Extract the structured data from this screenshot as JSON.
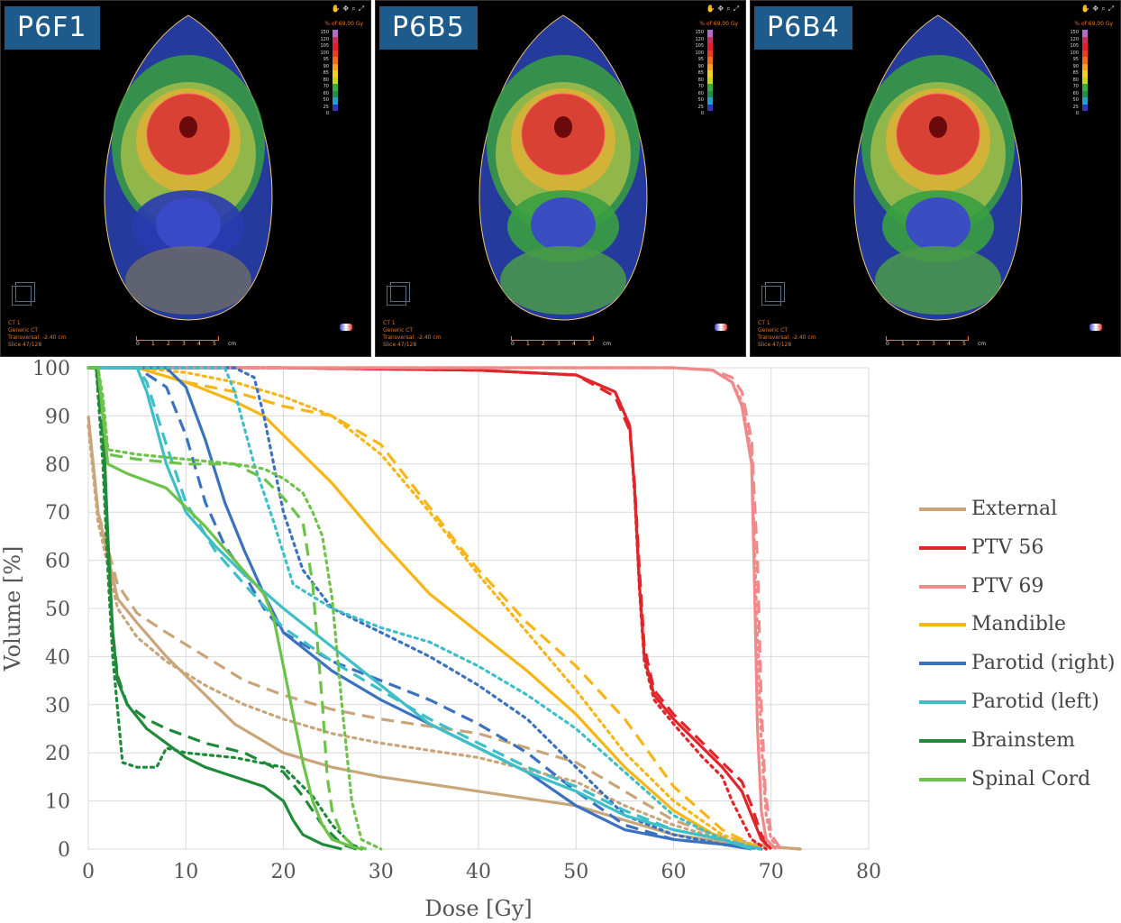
{
  "panels": [
    {
      "label": "P6F1"
    },
    {
      "label": "P6B5"
    },
    {
      "label": "P6B4"
    }
  ],
  "panel_info": {
    "lines": [
      "CT 1",
      "Generic CT",
      "Transversal: -2.40 cm",
      "Slice 47/128"
    ],
    "percent_title": "% of 69,00 Gy",
    "scale_values": [
      "150",
      "120",
      "105",
      "100",
      "95",
      "90",
      "85",
      "80",
      "70",
      "60",
      "50",
      "25",
      "0"
    ],
    "scale_colors": [
      "#b06ec8",
      "#c8325a",
      "#e0202a",
      "#ee3a2a",
      "#f06a22",
      "#f5a020",
      "#f0d020",
      "#c8d81e",
      "#3aaa3a",
      "#2a8a4a",
      "#22a0c8",
      "#2a3ab8",
      "#000000"
    ],
    "ruler_ticks": [
      "0",
      "1",
      "2",
      "3",
      "4",
      "5"
    ],
    "ruler_unit": "cm",
    "toolbar_icons": [
      "hand-icon",
      "pan-icon",
      "zoom-icon",
      "expand-icon"
    ]
  },
  "chart_data": {
    "type": "line",
    "title": "",
    "xlabel": "Dose [Gy]",
    "ylabel": "Volume [%]",
    "xlim": [
      0,
      80
    ],
    "ylim": [
      0,
      100
    ],
    "xticks": [
      "0",
      "10",
      "20",
      "30",
      "40",
      "50",
      "60",
      "70",
      "80"
    ],
    "yticks": [
      "0",
      "10",
      "20",
      "30",
      "40",
      "50",
      "60",
      "70",
      "80",
      "90",
      "100"
    ],
    "grid": true,
    "legend_position": "right",
    "line_styles": [
      "solid",
      "dashed",
      "dotted"
    ],
    "series": [
      {
        "name": "External",
        "color": "#c9a57a",
        "curves": [
          {
            "style": "solid",
            "x": [
              0,
              1,
              3,
              5,
              8,
              12,
              15,
              20,
              25,
              30,
              40,
              50,
              55,
              60,
              65,
              70,
              73
            ],
            "y": [
              90,
              70,
              52,
              47,
              40,
              32,
              26,
              20,
              17,
              15,
              12,
              9,
              6,
              3,
              1.5,
              0.5,
              0
            ]
          },
          {
            "style": "dashed",
            "x": [
              0,
              1,
              3,
              5,
              8,
              12,
              16,
              20,
              25,
              30,
              40,
              50,
              55,
              60,
              65,
              70,
              73
            ],
            "y": [
              90,
              70,
              55,
              49,
              45,
              40,
              35,
              32,
              29,
              27,
              24,
              18,
              12,
              6,
              2.5,
              0.5,
              0
            ]
          },
          {
            "style": "dotted",
            "x": [
              0,
              1,
              3,
              5,
              8,
              12,
              16,
              20,
              25,
              30,
              40,
              50,
              55,
              60,
              65,
              70,
              73
            ],
            "y": [
              88,
              68,
              50,
              44,
              39,
              34,
              30,
              27,
              24,
              22,
              19,
              14,
              9,
              5,
              2,
              0.5,
              0
            ]
          }
        ]
      },
      {
        "name": "PTV 56",
        "color": "#e0262b",
        "curves": [
          {
            "style": "solid",
            "x": [
              0,
              20,
              40,
              50,
              54,
              55.5,
              56,
              56.5,
              57,
              58,
              60,
              63,
              65,
              67,
              68,
              69,
              70
            ],
            "y": [
              100,
              100,
              99.5,
              98.5,
              95,
              88,
              75,
              55,
              40,
              32,
              27,
              21,
              17,
              12,
              7,
              2,
              0
            ]
          },
          {
            "style": "dashed",
            "x": [
              0,
              20,
              40,
              50,
              54,
              55.5,
              56,
              56.5,
              57,
              58,
              60,
              63,
              65,
              67,
              68,
              69,
              70
            ],
            "y": [
              100,
              100,
              99.5,
              98.5,
              94,
              87,
              76,
              58,
              42,
              33,
              28,
              22,
              18,
              14,
              9,
              3,
              0
            ]
          },
          {
            "style": "dotted",
            "x": [
              0,
              20,
              40,
              50,
              54,
              55.5,
              56,
              56.5,
              57,
              58,
              60,
              63,
              65,
              66,
              67,
              68,
              69.5
            ],
            "y": [
              100,
              100,
              99.5,
              98.5,
              95,
              88,
              74,
              54,
              39,
              31,
              26,
              19,
              15,
              10,
              6,
              2,
              0
            ]
          }
        ]
      },
      {
        "name": "PTV 69",
        "color": "#f08a8a",
        "curves": [
          {
            "style": "solid",
            "x": [
              0,
              30,
              60,
              64,
              66,
              67,
              68,
              68.3,
              68.6,
              69,
              69.5,
              70.5
            ],
            "y": [
              100,
              100,
              100,
              99.5,
              97,
              92,
              80,
              55,
              25,
              8,
              2,
              0
            ]
          },
          {
            "style": "dashed",
            "x": [
              0,
              30,
              60,
              64,
              66,
              67,
              68,
              68.6,
              69,
              69.4,
              70,
              71
            ],
            "y": [
              100,
              100,
              100,
              99.5,
              98,
              95,
              85,
              60,
              30,
              12,
              3,
              0
            ]
          },
          {
            "style": "dotted",
            "x": [
              0,
              30,
              60,
              64,
              66,
              67,
              68,
              68.5,
              69,
              69.5,
              70,
              71
            ],
            "y": [
              100,
              100,
              100,
              99.5,
              97,
              93,
              82,
              50,
              22,
              7,
              2,
              0
            ]
          }
        ]
      },
      {
        "name": "Mandible",
        "color": "#f7b516",
        "curves": [
          {
            "style": "solid",
            "x": [
              0,
              5,
              10,
              15,
              18,
              20,
              25,
              30,
              35,
              40,
              45,
              50,
              55,
              60,
              65,
              68
            ],
            "y": [
              100,
              100,
              97,
              93,
              90,
              86,
              76,
              64,
              53,
              45,
              37,
              28,
              17,
              8,
              2,
              0
            ]
          },
          {
            "style": "dashed",
            "x": [
              0,
              5,
              10,
              15,
              20,
              25,
              30,
              35,
              38,
              40,
              45,
              50,
              55,
              60,
              65,
              69
            ],
            "y": [
              100,
              100,
              97,
              95,
              92,
              90,
              84,
              71,
              63,
              58,
              47,
              38,
              27,
              13,
              4,
              0
            ]
          },
          {
            "style": "dotted",
            "x": [
              0,
              5,
              10,
              15,
              20,
              25,
              30,
              35,
              40,
              45,
              50,
              55,
              60,
              65,
              69
            ],
            "y": [
              100,
              100,
              99,
              97,
              94,
              90,
              82,
              70,
              57,
              45,
              33,
              20,
              10,
              3,
              0
            ]
          }
        ]
      },
      {
        "name": "Parotid (right)",
        "color": "#3a72c0",
        "curves": [
          {
            "style": "solid",
            "x": [
              0,
              5,
              8,
              10,
              12,
              14,
              16,
              18,
              20,
              25,
              30,
              35,
              40,
              45,
              50,
              55,
              60,
              65,
              68
            ],
            "y": [
              100,
              100,
              100,
              96,
              85,
              72,
              62,
              53,
              45,
              37,
              31,
              26,
              21,
              16,
              9,
              4,
              2,
              1,
              0
            ]
          },
          {
            "style": "dashed",
            "x": [
              0,
              5,
              8,
              10,
              12,
              14,
              16,
              18,
              20,
              25,
              30,
              35,
              40,
              45,
              50,
              55,
              60,
              65,
              69
            ],
            "y": [
              100,
              100,
              96,
              86,
              72,
              63,
              57,
              50,
              45,
              39,
              35,
              31,
              26,
              20,
              12,
              5,
              2,
              1,
              0
            ]
          },
          {
            "style": "dotted",
            "x": [
              0,
              5,
              10,
              15,
              17,
              18,
              19,
              20,
              22,
              25,
              30,
              35,
              40,
              45,
              50,
              55,
              60,
              65,
              69
            ],
            "y": [
              100,
              100,
              100,
              100,
              98,
              90,
              80,
              70,
              58,
              50,
              45,
              40,
              34,
              27,
              17,
              7,
              3,
              1,
              0
            ]
          }
        ]
      },
      {
        "name": "Parotid (left)",
        "color": "#3ebfc8",
        "curves": [
          {
            "style": "solid",
            "x": [
              0,
              5,
              6,
              8,
              10,
              13,
              16,
              20,
              25,
              30,
              35,
              40,
              45,
              50,
              55,
              60,
              65,
              68
            ],
            "y": [
              100,
              100,
              95,
              80,
              70,
              63,
              57,
              50,
              42,
              34,
              26,
              21,
              16,
              12,
              7,
              4,
              2,
              0
            ]
          },
          {
            "style": "dashed",
            "x": [
              0,
              5,
              6,
              8,
              10,
              13,
              16,
              20,
              25,
              30,
              35,
              40,
              45,
              50,
              55,
              60,
              65,
              69
            ],
            "y": [
              100,
              100,
              97,
              84,
              72,
              62,
              55,
              46,
              39,
              33,
              27,
              22,
              17,
              13,
              8,
              4,
              2,
              0
            ]
          },
          {
            "style": "dotted",
            "x": [
              0,
              5,
              10,
              14,
              15,
              17,
              19,
              21,
              25,
              30,
              35,
              40,
              45,
              50,
              55,
              60,
              65,
              69
            ],
            "y": [
              100,
              100,
              100,
              100,
              95,
              80,
              68,
              55,
              50,
              46,
              43,
              38,
              32,
              25,
              16,
              7,
              2,
              0
            ]
          }
        ]
      },
      {
        "name": "Brainstem",
        "color": "#1e8a3a",
        "curves": [
          {
            "style": "solid",
            "x": [
              0,
              0.8,
              1.5,
              2,
              2.5,
              3,
              4,
              6,
              8,
              10,
              12,
              15,
              18,
              20,
              21,
              22,
              24,
              26
            ],
            "y": [
              100,
              100,
              90,
              65,
              45,
              35,
              30,
              25,
              22,
              19,
              17,
              15,
              13,
              10,
              6,
              3,
              1,
              0
            ]
          },
          {
            "style": "dashed",
            "x": [
              0,
              0.8,
              1.5,
              2,
              2.5,
              3,
              4,
              6,
              8,
              12,
              16,
              20,
              22,
              24,
              26,
              27.5
            ],
            "y": [
              100,
              100,
              85,
              62,
              45,
              36,
              30,
              27,
              25,
              22,
              20,
              16,
              11,
              5,
              1,
              0
            ]
          },
          {
            "style": "dotted",
            "x": [
              0,
              0.8,
              1.5,
              2,
              2.5,
              3.5,
              5,
              7,
              8,
              10,
              15,
              20,
              23,
              25,
              27,
              28
            ],
            "y": [
              100,
              100,
              80,
              58,
              40,
              18,
              17,
              17,
              21,
              20,
              19,
              17,
              11,
              5,
              1,
              0
            ]
          }
        ]
      },
      {
        "name": "Spinal Cord",
        "color": "#6dc24a",
        "curves": [
          {
            "style": "solid",
            "x": [
              0,
              1,
              1.5,
              2,
              4,
              8,
              12,
              15,
              18,
              19,
              20,
              21,
              22,
              23,
              24,
              25,
              27,
              28
            ],
            "y": [
              100,
              100,
              90,
              80,
              78,
              75,
              67,
              60,
              53,
              48,
              38,
              28,
              18,
              10,
              5,
              2,
              0.5,
              0
            ]
          },
          {
            "style": "dashed",
            "x": [
              0,
              1,
              1.5,
              2,
              5,
              10,
              15,
              18,
              20,
              22,
              23,
              24,
              24.5,
              25,
              26,
              27,
              28.5
            ],
            "y": [
              100,
              100,
              92,
              82,
              81,
              80,
              80,
              77,
              73,
              68,
              55,
              30,
              15,
              8,
              3,
              1,
              0
            ]
          },
          {
            "style": "dotted",
            "x": [
              0,
              1,
              1.5,
              2,
              5,
              10,
              15,
              18,
              20,
              22,
              23,
              24,
              25,
              26,
              27,
              28,
              30
            ],
            "y": [
              100,
              100,
              94,
              83,
              82,
              81,
              80,
              79,
              77,
              74,
              70,
              65,
              52,
              30,
              10,
              2,
              0
            ]
          }
        ]
      }
    ]
  }
}
